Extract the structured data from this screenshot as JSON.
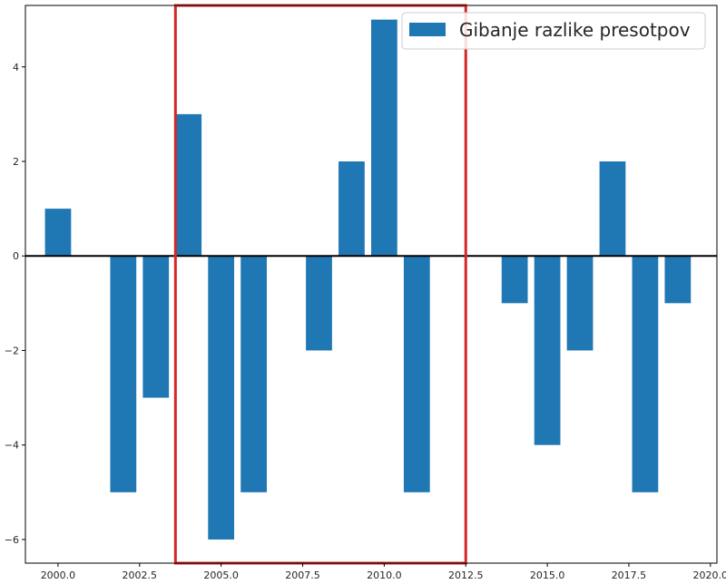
{
  "chart_data": {
    "type": "bar",
    "series": [
      {
        "name": "Gibanje razlike presotpov",
        "color": "#1f77b4",
        "x": [
          2000,
          2002,
          2003,
          2004,
          2005,
          2006,
          2008,
          2009,
          2010,
          2011,
          2014,
          2015,
          2016,
          2017,
          2018,
          2019
        ],
        "values": [
          1,
          -5,
          -3,
          3,
          -6,
          -5,
          -2,
          2,
          5,
          -5,
          -1,
          -4,
          -2,
          2,
          -5,
          -1
        ]
      }
    ],
    "xlim": [
      1999.0,
      2020.2
    ],
    "ylim": [
      -6.5,
      5.3
    ],
    "xticks": [
      "2000.0",
      "2002.5",
      "2005.0",
      "2007.5",
      "2010.0",
      "2012.5",
      "2015.0",
      "2017.5",
      "2020.0"
    ],
    "yticks": [
      "−6",
      "−4",
      "−2",
      "0",
      "2",
      "4"
    ],
    "xtick_values": [
      2000.0,
      2002.5,
      2005.0,
      2007.5,
      2010.0,
      2012.5,
      2015.0,
      2017.5,
      2020.0
    ],
    "ytick_values": [
      -6,
      -4,
      -2,
      0,
      2,
      4
    ],
    "bar_width": 0.8,
    "zero_line": true,
    "legend_position": "top-right",
    "highlight": {
      "x_range": [
        2003.6,
        2012.5
      ],
      "color": "#d62728"
    },
    "title": "",
    "xlabel": "",
    "ylabel": ""
  }
}
